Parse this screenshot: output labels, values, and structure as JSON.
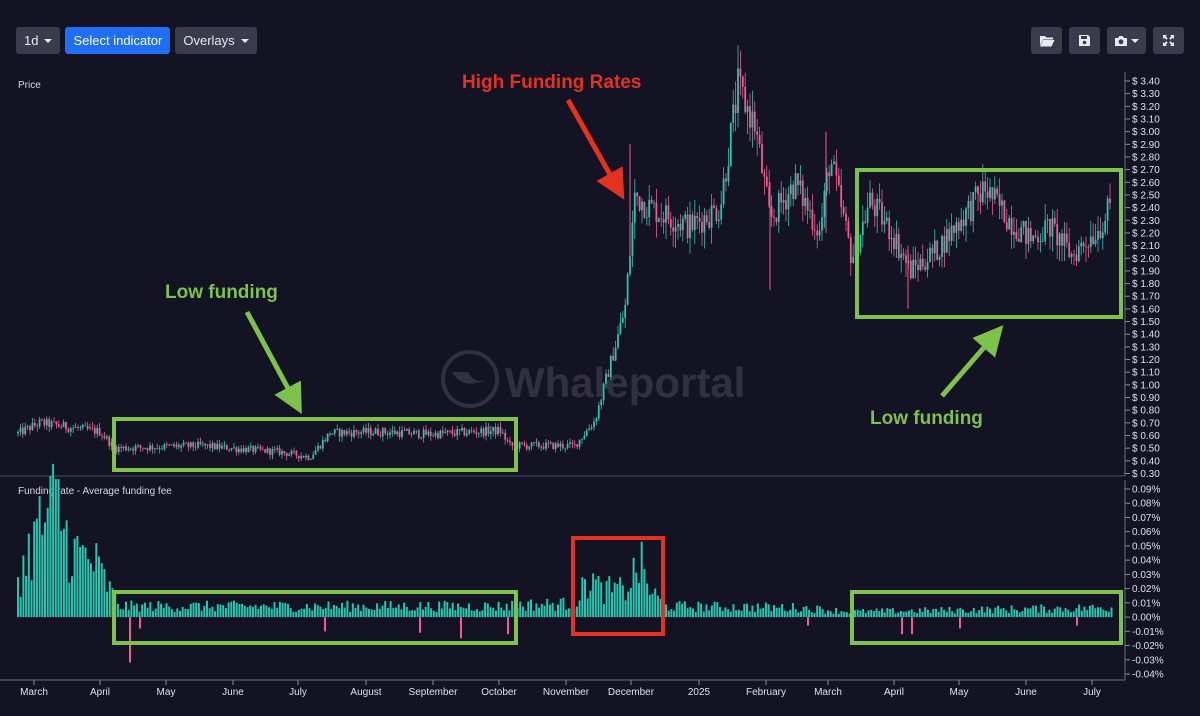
{
  "toolbar": {
    "interval_label": "1d",
    "indicator_label": "Select indicator",
    "overlays_label": "Overlays",
    "icons": [
      "folder-open-icon",
      "save-icon",
      "camera-icon",
      "fullscreen-icon"
    ]
  },
  "watermark": "Whaleportal",
  "colors": {
    "background": "#131324",
    "up": "#26c6b0",
    "down": "#ef5b8c",
    "annotation_green": "#7dc24b",
    "annotation_red": "#e5321f"
  },
  "chart_data": [
    {
      "type": "candlestick",
      "title": "Price",
      "y_tick_labels": [
        "$ 3.40",
        "$ 3.30",
        "$ 3.20",
        "$ 3.10",
        "$ 3.00",
        "$ 2.90",
        "$ 2.80",
        "$ 2.70",
        "$ 2.60",
        "$ 2.50",
        "$ 2.40",
        "$ 2.30",
        "$ 2.20",
        "$ 2.10",
        "$ 2.00",
        "$ 1.90",
        "$ 1.80",
        "$ 1.70",
        "$ 1.60",
        "$ 1.50",
        "$ 1.40",
        "$ 1.30",
        "$ 1.20",
        "$ 1.10",
        "$ 1.00",
        "$ 0.90",
        "$ 0.80",
        "$ 0.70",
        "$ 0.60",
        "$ 0.50",
        "$ 0.40",
        "$ 0.30"
      ],
      "ylim": [
        0.3,
        3.4
      ],
      "x_tick_labels": [
        "March",
        "April",
        "May",
        "June",
        "July",
        "August",
        "September",
        "October",
        "November",
        "December",
        "2025",
        "February",
        "March",
        "April",
        "May",
        "June",
        "July"
      ],
      "price_path": [
        [
          0,
          0.55
        ],
        [
          40,
          0.7
        ],
        [
          100,
          0.63
        ],
        [
          115,
          0.5
        ],
        [
          200,
          0.52
        ],
        [
          280,
          0.47
        ],
        [
          310,
          0.43
        ],
        [
          330,
          0.62
        ],
        [
          380,
          0.63
        ],
        [
          430,
          0.61
        ],
        [
          500,
          0.64
        ],
        [
          510,
          0.52
        ],
        [
          575,
          0.52
        ],
        [
          595,
          0.72
        ],
        [
          615,
          1.3
        ],
        [
          625,
          1.6
        ],
        [
          635,
          2.5
        ],
        [
          650,
          2.4
        ],
        [
          690,
          2.25
        ],
        [
          720,
          2.4
        ],
        [
          738,
          3.35
        ],
        [
          755,
          3.05
        ],
        [
          770,
          2.3
        ],
        [
          795,
          2.6
        ],
        [
          820,
          2.2
        ],
        [
          830,
          2.8
        ],
        [
          852,
          2.0
        ],
        [
          870,
          2.45
        ],
        [
          892,
          2.2
        ],
        [
          910,
          1.9
        ],
        [
          935,
          2.05
        ],
        [
          960,
          2.3
        ],
        [
          985,
          2.55
        ],
        [
          1010,
          2.3
        ],
        [
          1030,
          2.15
        ],
        [
          1050,
          2.25
        ],
        [
          1072,
          2.02
        ],
        [
          1100,
          2.25
        ],
        [
          1112,
          2.42
        ]
      ],
      "annotations": [
        {
          "label": "High Funding Rates",
          "color": "red"
        },
        {
          "label": "Low funding",
          "color": "green"
        },
        {
          "label": "Low funding",
          "color": "green"
        }
      ]
    },
    {
      "type": "bar",
      "title": "Funding rate - Average funding fee",
      "y_tick_labels": [
        "0.09%",
        "0.08%",
        "0.07%",
        "0.06%",
        "0.05%",
        "0.04%",
        "0.03%",
        "0.02%",
        "0.01%",
        "0.00%",
        "-0.01%",
        "-0.02%",
        "-0.03%",
        "-0.04%"
      ],
      "ylim": [
        -0.04,
        0.09
      ],
      "units": "%",
      "funding_profile": [
        [
          20,
          0.03
        ],
        [
          35,
          0.06
        ],
        [
          57,
          0.085
        ],
        [
          70,
          0.05
        ],
        [
          95,
          0.04
        ],
        [
          110,
          0.02
        ],
        [
          120,
          0.008
        ],
        [
          500,
          0.008
        ],
        [
          520,
          0.009
        ],
        [
          575,
          0.01
        ],
        [
          590,
          0.03
        ],
        [
          600,
          0.02
        ],
        [
          625,
          0.02
        ],
        [
          640,
          0.04
        ],
        [
          650,
          0.02
        ],
        [
          665,
          0.008
        ],
        [
          800,
          0.007
        ],
        [
          850,
          0.004
        ],
        [
          1112,
          0.007
        ]
      ],
      "negative_spikes": [
        {
          "x": 130,
          "value": -0.032
        },
        {
          "x": 140,
          "value": -0.008
        },
        {
          "x": 325,
          "value": -0.01
        },
        {
          "x": 420,
          "value": -0.011
        },
        {
          "x": 461,
          "value": -0.015
        },
        {
          "x": 508,
          "value": -0.012
        },
        {
          "x": 808,
          "value": -0.006
        },
        {
          "x": 851,
          "value": -0.008
        },
        {
          "x": 902,
          "value": -0.012
        },
        {
          "x": 912,
          "value": -0.012
        },
        {
          "x": 960,
          "value": -0.008
        },
        {
          "x": 1077,
          "value": -0.006
        }
      ]
    }
  ]
}
